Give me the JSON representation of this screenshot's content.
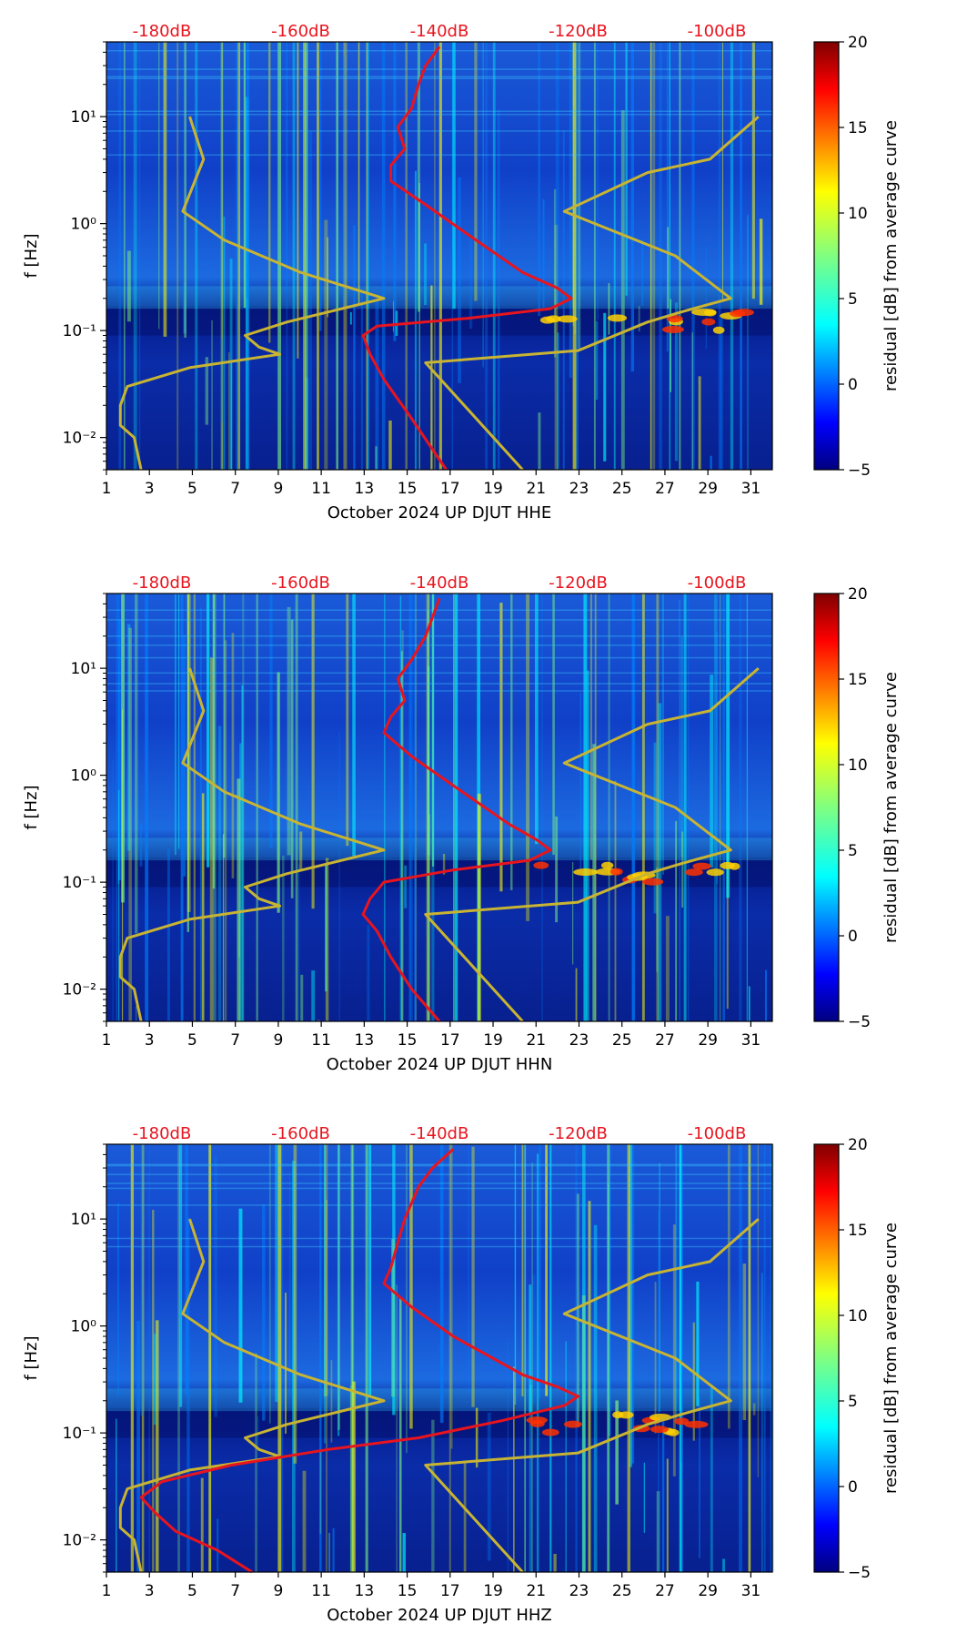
{
  "colors": {
    "red_curve": "#e8141e",
    "yellow_curve": "#c8b432",
    "db_label": "#e8141e",
    "colormap": [
      "#00007f",
      "#0000ff",
      "#0080ff",
      "#00ffff",
      "#80ff80",
      "#ffff00",
      "#ff8000",
      "#ff0000",
      "#7f0000"
    ]
  },
  "chart_data": [
    {
      "type": "heatmap",
      "title": "",
      "xlabel": "October 2024 UP DJUT  HHE",
      "ylabel": "f [Hz]",
      "colorbar_label": "residual [dB] from average curve",
      "colorbar_range": [
        -5,
        20
      ],
      "colorbar_ticks": [
        "20",
        "15",
        "10",
        "5",
        "0",
        "−5"
      ],
      "xlim": [
        1,
        32
      ],
      "x_ticks": [
        "1",
        "3",
        "5",
        "7",
        "9",
        "11",
        "13",
        "15",
        "17",
        "19",
        "21",
        "23",
        "25",
        "27",
        "29",
        "31"
      ],
      "ylim": [
        0.005,
        50
      ],
      "y_ticks": [
        "10¹",
        "10⁰",
        "10⁻¹",
        "10⁻²"
      ],
      "top_db_ticks": [
        "-180dB",
        "-160dB",
        "-140dB",
        "-120dB",
        "-100dB"
      ],
      "db_range": [
        -188,
        -92
      ],
      "red_curve": {
        "name": "average PSD (dB)",
        "points": [
          [
            -139,
            0.005
          ],
          [
            -144,
            0.015
          ],
          [
            -148,
            0.035
          ],
          [
            -150,
            0.06
          ],
          [
            -151,
            0.09
          ],
          [
            -149,
            0.11
          ],
          [
            -136,
            0.13
          ],
          [
            -124,
            0.16
          ],
          [
            -121,
            0.2
          ],
          [
            -123,
            0.25
          ],
          [
            -128,
            0.35
          ],
          [
            -136,
            0.8
          ],
          [
            -142,
            1.5
          ],
          [
            -147,
            2.5
          ],
          [
            -147,
            3.5
          ],
          [
            -145,
            5
          ],
          [
            -146,
            8
          ],
          [
            -144,
            12
          ],
          [
            -143,
            20
          ],
          [
            -142,
            30
          ],
          [
            -140,
            45
          ]
        ]
      },
      "yellow_curve": {
        "name": "model curves (dB)",
        "points": [
          [
            -183,
            0.005
          ],
          [
            -184,
            0.01
          ],
          [
            -186,
            0.013
          ],
          [
            -186,
            0.02
          ],
          [
            -185,
            0.03
          ],
          [
            -176,
            0.045
          ],
          [
            -163,
            0.06
          ],
          [
            -166,
            0.07
          ],
          [
            -168,
            0.09
          ],
          [
            -162,
            0.12
          ],
          [
            -148,
            0.2
          ],
          [
            -160,
            0.35
          ],
          [
            -171,
            0.7
          ],
          [
            -177,
            1.3
          ],
          [
            -174,
            4
          ],
          [
            -176,
            10
          ],
          [
            -999,
            0
          ],
          [
            -128,
            0.005
          ],
          [
            -142,
            0.05
          ],
          [
            -120,
            0.065
          ],
          [
            -110,
            0.12
          ],
          [
            -105,
            0.15
          ],
          [
            -98,
            0.2
          ],
          [
            -106,
            0.5
          ],
          [
            -122,
            1.3
          ],
          [
            -110,
            3
          ],
          [
            -101,
            4
          ],
          [
            -94,
            10
          ]
        ]
      }
    },
    {
      "type": "heatmap",
      "title": "",
      "xlabel": "October 2024 UP DJUT  HHN",
      "ylabel": "f [Hz]",
      "colorbar_label": "residual [dB] from average curve",
      "colorbar_range": [
        -5,
        20
      ],
      "colorbar_ticks": [
        "20",
        "15",
        "10",
        "5",
        "0",
        "−5"
      ],
      "xlim": [
        1,
        32
      ],
      "x_ticks": [
        "1",
        "3",
        "5",
        "7",
        "9",
        "11",
        "13",
        "15",
        "17",
        "19",
        "21",
        "23",
        "25",
        "27",
        "29",
        "31"
      ],
      "ylim": [
        0.005,
        50
      ],
      "y_ticks": [
        "10¹",
        "10⁰",
        "10⁻¹",
        "10⁻²"
      ],
      "top_db_ticks": [
        "-180dB",
        "-160dB",
        "-140dB",
        "-120dB",
        "-100dB"
      ],
      "db_range": [
        -188,
        -92
      ],
      "red_curve": {
        "name": "average PSD (dB)",
        "points": [
          [
            -140,
            0.005
          ],
          [
            -144,
            0.01
          ],
          [
            -147,
            0.02
          ],
          [
            -149,
            0.035
          ],
          [
            -151,
            0.05
          ],
          [
            -150,
            0.07
          ],
          [
            -148,
            0.1
          ],
          [
            -138,
            0.13
          ],
          [
            -127,
            0.16
          ],
          [
            -124,
            0.2
          ],
          [
            -126,
            0.25
          ],
          [
            -130,
            0.35
          ],
          [
            -138,
            0.8
          ],
          [
            -144,
            1.5
          ],
          [
            -148,
            2.5
          ],
          [
            -147,
            3.5
          ],
          [
            -145,
            5
          ],
          [
            -146,
            8
          ],
          [
            -144,
            12
          ],
          [
            -142,
            20
          ],
          [
            -141,
            30
          ],
          [
            -140,
            45
          ]
        ]
      },
      "yellow_curve": {
        "name": "model curves (dB)",
        "points": [
          [
            -183,
            0.005
          ],
          [
            -184,
            0.01
          ],
          [
            -186,
            0.013
          ],
          [
            -186,
            0.02
          ],
          [
            -185,
            0.03
          ],
          [
            -176,
            0.045
          ],
          [
            -163,
            0.06
          ],
          [
            -166,
            0.07
          ],
          [
            -168,
            0.09
          ],
          [
            -162,
            0.12
          ],
          [
            -148,
            0.2
          ],
          [
            -160,
            0.35
          ],
          [
            -171,
            0.7
          ],
          [
            -177,
            1.3
          ],
          [
            -174,
            4
          ],
          [
            -176,
            10
          ],
          [
            -999,
            0
          ],
          [
            -128,
            0.005
          ],
          [
            -142,
            0.05
          ],
          [
            -120,
            0.065
          ],
          [
            -110,
            0.12
          ],
          [
            -105,
            0.15
          ],
          [
            -98,
            0.2
          ],
          [
            -106,
            0.5
          ],
          [
            -122,
            1.3
          ],
          [
            -110,
            3
          ],
          [
            -101,
            4
          ],
          [
            -94,
            10
          ]
        ]
      }
    },
    {
      "type": "heatmap",
      "title": "",
      "xlabel": "October 2024 UP DJUT  HHZ",
      "ylabel": "f [Hz]",
      "colorbar_label": "residual [dB] from average curve",
      "colorbar_range": [
        -5,
        20
      ],
      "colorbar_ticks": [
        "20",
        "15",
        "10",
        "5",
        "0",
        "−5"
      ],
      "xlim": [
        1,
        32
      ],
      "x_ticks": [
        "1",
        "3",
        "5",
        "7",
        "9",
        "11",
        "13",
        "15",
        "17",
        "19",
        "21",
        "23",
        "25",
        "27",
        "29",
        "31"
      ],
      "ylim": [
        0.005,
        50
      ],
      "y_ticks": [
        "10¹",
        "10⁰",
        "10⁻¹",
        "10⁻²"
      ],
      "top_db_ticks": [
        "-180dB",
        "-160dB",
        "-140dB",
        "-120dB",
        "-100dB"
      ],
      "db_range": [
        -188,
        -92
      ],
      "red_curve": {
        "name": "average PSD (dB)",
        "points": [
          [
            -167,
            0.005
          ],
          [
            -172,
            0.008
          ],
          [
            -178,
            0.012
          ],
          [
            -181,
            0.018
          ],
          [
            -183,
            0.025
          ],
          [
            -180,
            0.035
          ],
          [
            -170,
            0.05
          ],
          [
            -156,
            0.07
          ],
          [
            -143,
            0.09
          ],
          [
            -131,
            0.13
          ],
          [
            -122,
            0.18
          ],
          [
            -120,
            0.22
          ],
          [
            -123,
            0.27
          ],
          [
            -128,
            0.35
          ],
          [
            -138,
            0.8
          ],
          [
            -144,
            1.5
          ],
          [
            -148,
            2.5
          ],
          [
            -147,
            3.5
          ],
          [
            -146,
            6
          ],
          [
            -145,
            10
          ],
          [
            -143,
            20
          ],
          [
            -141,
            30
          ],
          [
            -138,
            45
          ]
        ]
      },
      "yellow_curve": {
        "name": "model curves (dB)",
        "points": [
          [
            -183,
            0.005
          ],
          [
            -184,
            0.01
          ],
          [
            -186,
            0.013
          ],
          [
            -186,
            0.02
          ],
          [
            -185,
            0.03
          ],
          [
            -176,
            0.045
          ],
          [
            -163,
            0.06
          ],
          [
            -166,
            0.07
          ],
          [
            -168,
            0.09
          ],
          [
            -162,
            0.12
          ],
          [
            -148,
            0.2
          ],
          [
            -160,
            0.35
          ],
          [
            -171,
            0.7
          ],
          [
            -177,
            1.3
          ],
          [
            -174,
            4
          ],
          [
            -176,
            10
          ],
          [
            -999,
            0
          ],
          [
            -128,
            0.005
          ],
          [
            -142,
            0.05
          ],
          [
            -120,
            0.065
          ],
          [
            -110,
            0.12
          ],
          [
            -105,
            0.15
          ],
          [
            -98,
            0.2
          ],
          [
            -106,
            0.5
          ],
          [
            -122,
            1.3
          ],
          [
            -110,
            3
          ],
          [
            -101,
            4
          ],
          [
            -94,
            10
          ]
        ]
      }
    }
  ]
}
